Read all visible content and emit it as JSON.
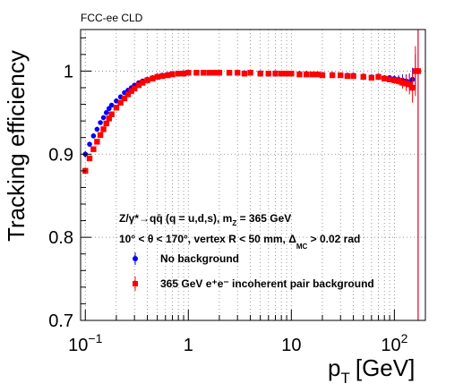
{
  "chart_data": {
    "type": "scatter",
    "title": "FCC-ee CLD",
    "xlabel": "p",
    "xlabel_sub": "T",
    "xlabel_unit": "[GeV]",
    "ylabel": "Tracking efficiency",
    "xscale": "log",
    "xlim": [
      0.09,
      200
    ],
    "ylim": [
      0.7,
      1.05
    ],
    "grid": true,
    "y_ticks": [
      {
        "v": 0.7,
        "label": "0.7"
      },
      {
        "v": 0.8,
        "label": "0.8"
      },
      {
        "v": 0.9,
        "label": "0.9"
      },
      {
        "v": 1.0,
        "label": "1"
      }
    ],
    "x_ticks": [
      {
        "v": 0.1,
        "label": "10",
        "exp": "−1"
      },
      {
        "v": 1,
        "label": "1",
        "exp": ""
      },
      {
        "v": 10,
        "label": "10",
        "exp": ""
      },
      {
        "v": 100,
        "label": "10",
        "exp": "2"
      }
    ],
    "annotations": {
      "line1": "Z/γ*→qq̄ (q = u,d,s), m",
      "line1_sub": "Z",
      "line1_tail": " = 365 GeV",
      "line2": "10° < θ < 170°, vertex R < 50 mm, Δ",
      "line2_sub": "MC",
      "line2_tail": " > 0.02 rad"
    },
    "legend_position": "bottom-left",
    "series": [
      {
        "name": "No background",
        "color": "#0000ff",
        "marker": "circle",
        "x": [
          0.1,
          0.11,
          0.12,
          0.13,
          0.14,
          0.15,
          0.16,
          0.17,
          0.18,
          0.2,
          0.22,
          0.24,
          0.26,
          0.28,
          0.3,
          0.33,
          0.36,
          0.4,
          0.45,
          0.5,
          0.56,
          0.63,
          0.7,
          0.8,
          0.9,
          1.0,
          1.2,
          1.4,
          1.6,
          1.8,
          2.0,
          2.5,
          3.0,
          3.5,
          4.0,
          5.0,
          6.0,
          7.0,
          8.0,
          9.0,
          10,
          12,
          14,
          16,
          18,
          20,
          25,
          30,
          35,
          40,
          50,
          60,
          70,
          80,
          90,
          100,
          110,
          120,
          130,
          140,
          150,
          160,
          170
        ],
        "y": [
          0.9,
          0.912,
          0.922,
          0.93,
          0.938,
          0.944,
          0.95,
          0.955,
          0.959,
          0.964,
          0.969,
          0.974,
          0.977,
          0.98,
          0.983,
          0.986,
          0.988,
          0.99,
          0.992,
          0.994,
          0.995,
          0.996,
          0.997,
          0.997,
          0.998,
          0.998,
          0.998,
          0.998,
          0.998,
          0.998,
          0.998,
          0.998,
          0.998,
          0.998,
          0.998,
          0.998,
          0.997,
          0.998,
          0.997,
          0.997,
          0.997,
          0.997,
          0.997,
          0.996,
          0.996,
          0.996,
          0.996,
          0.995,
          0.995,
          0.995,
          0.994,
          0.993,
          0.994,
          0.992,
          0.992,
          0.991,
          0.99,
          0.989,
          0.988,
          0.987,
          0.99,
          1.0,
          1.0
        ],
        "yerr": [
          0.004,
          0.003,
          0.003,
          0.003,
          0.002,
          0.002,
          0.002,
          0.002,
          0.002,
          0.002,
          0.001,
          0.001,
          0.001,
          0.001,
          0.001,
          0.001,
          0.001,
          0.001,
          0.001,
          0.001,
          0.001,
          0.001,
          0.001,
          0.001,
          0.001,
          0.001,
          0.001,
          0.001,
          0.001,
          0.001,
          0.001,
          0.001,
          0.001,
          0.001,
          0.001,
          0.001,
          0.001,
          0.001,
          0.001,
          0.001,
          0.001,
          0.001,
          0.001,
          0.001,
          0.001,
          0.001,
          0.001,
          0.001,
          0.001,
          0.002,
          0.002,
          0.002,
          0.002,
          0.003,
          0.003,
          0.004,
          0.005,
          0.007,
          0.008,
          0.01,
          0.014,
          0.02,
          0.3
        ]
      },
      {
        "name": "365 GeV e⁺e⁻ incoherent pair background",
        "color": "#ff0000",
        "marker": "square",
        "x": [
          0.1,
          0.11,
          0.12,
          0.13,
          0.14,
          0.15,
          0.16,
          0.17,
          0.18,
          0.2,
          0.22,
          0.24,
          0.26,
          0.28,
          0.3,
          0.33,
          0.36,
          0.4,
          0.45,
          0.5,
          0.56,
          0.63,
          0.7,
          0.8,
          0.9,
          1.0,
          1.2,
          1.4,
          1.6,
          1.8,
          2.0,
          2.5,
          3.0,
          3.5,
          4.0,
          5.0,
          6.0,
          7.0,
          8.0,
          9.0,
          10,
          12,
          14,
          16,
          18,
          20,
          25,
          30,
          35,
          40,
          50,
          60,
          70,
          80,
          90,
          100,
          110,
          120,
          130,
          140,
          150,
          160,
          170
        ],
        "y": [
          0.88,
          0.895,
          0.906,
          0.915,
          0.923,
          0.93,
          0.937,
          0.943,
          0.948,
          0.956,
          0.962,
          0.967,
          0.972,
          0.976,
          0.979,
          0.983,
          0.986,
          0.989,
          0.991,
          0.993,
          0.994,
          0.995,
          0.996,
          0.997,
          0.997,
          0.998,
          0.998,
          0.998,
          0.998,
          0.998,
          0.998,
          0.998,
          0.998,
          0.997,
          0.998,
          0.997,
          0.997,
          0.997,
          0.997,
          0.997,
          0.997,
          0.996,
          0.996,
          0.996,
          0.996,
          0.995,
          0.995,
          0.995,
          0.994,
          0.994,
          0.993,
          0.992,
          0.993,
          0.991,
          0.99,
          0.989,
          0.988,
          0.986,
          0.985,
          0.984,
          0.98,
          1.0,
          1.0
        ],
        "yerr": [
          0.004,
          0.003,
          0.003,
          0.003,
          0.002,
          0.002,
          0.002,
          0.002,
          0.002,
          0.002,
          0.001,
          0.001,
          0.001,
          0.001,
          0.001,
          0.001,
          0.001,
          0.001,
          0.001,
          0.001,
          0.001,
          0.001,
          0.001,
          0.001,
          0.001,
          0.001,
          0.001,
          0.001,
          0.001,
          0.001,
          0.001,
          0.001,
          0.001,
          0.001,
          0.001,
          0.001,
          0.001,
          0.001,
          0.001,
          0.001,
          0.001,
          0.001,
          0.001,
          0.001,
          0.001,
          0.001,
          0.001,
          0.001,
          0.001,
          0.002,
          0.002,
          0.002,
          0.002,
          0.003,
          0.003,
          0.004,
          0.005,
          0.007,
          0.009,
          0.012,
          0.018,
          0.03,
          0.3
        ]
      }
    ]
  }
}
